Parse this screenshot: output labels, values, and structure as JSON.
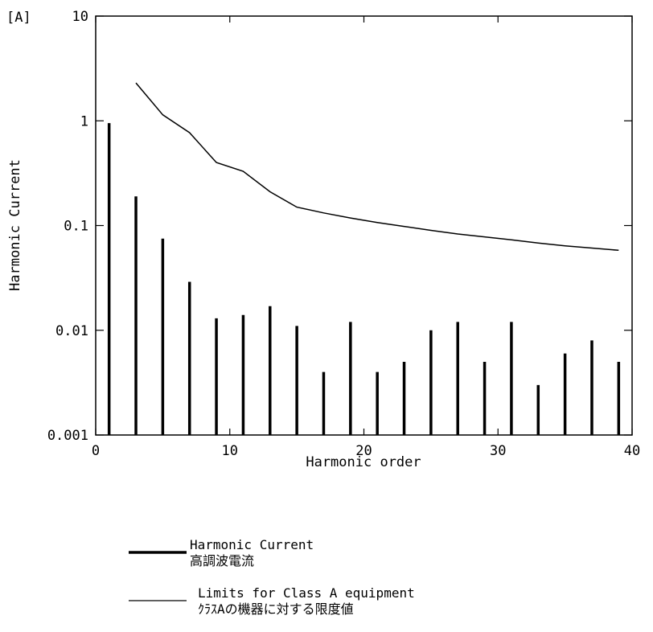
{
  "chart_data": {
    "type": "bar",
    "title": "",
    "xlabel": "Harmonic order",
    "ylabel": "Harmonic Current",
    "y_unit": "[A]",
    "xlim": [
      0,
      40
    ],
    "ylim": [
      0.001,
      10
    ],
    "y_scale": "log",
    "grid": false,
    "x_ticks": [
      "0",
      "10",
      "20",
      "30",
      "40"
    ],
    "y_ticks": [
      "0.001",
      "0.01",
      "0.1",
      "1",
      "10"
    ],
    "x_tick_values": [
      0,
      10,
      20,
      30,
      40
    ],
    "y_tick_values": [
      0.001,
      0.01,
      0.1,
      1,
      10
    ],
    "series": [
      {
        "name": "Harmonic Current",
        "name_ja": "高調波電流",
        "style": "bar",
        "x": [
          1,
          3,
          5,
          7,
          9,
          11,
          13,
          15,
          17,
          19,
          21,
          23,
          25,
          27,
          29,
          31,
          33,
          35,
          37,
          39
        ],
        "values": [
          0.95,
          0.19,
          0.075,
          0.029,
          0.013,
          0.014,
          0.017,
          0.011,
          0.004,
          0.012,
          0.004,
          0.005,
          0.01,
          0.012,
          0.005,
          0.012,
          0.003,
          0.006,
          0.008,
          0.005
        ]
      },
      {
        "name": "Limits for Class A equipment",
        "name_ja": "ｸﾗｽAの機器に対する限度値",
        "style": "line",
        "x": [
          3,
          5,
          7,
          9,
          11,
          13,
          15,
          17,
          19,
          21,
          23,
          25,
          27,
          29,
          31,
          33,
          35,
          37,
          39
        ],
        "values": [
          2.3,
          1.14,
          0.77,
          0.4,
          0.33,
          0.21,
          0.15,
          0.132,
          0.118,
          0.107,
          0.098,
          0.09,
          0.083,
          0.078,
          0.073,
          0.068,
          0.064,
          0.061,
          0.058
        ]
      }
    ],
    "legend": {
      "placement": "bottom-left"
    }
  }
}
